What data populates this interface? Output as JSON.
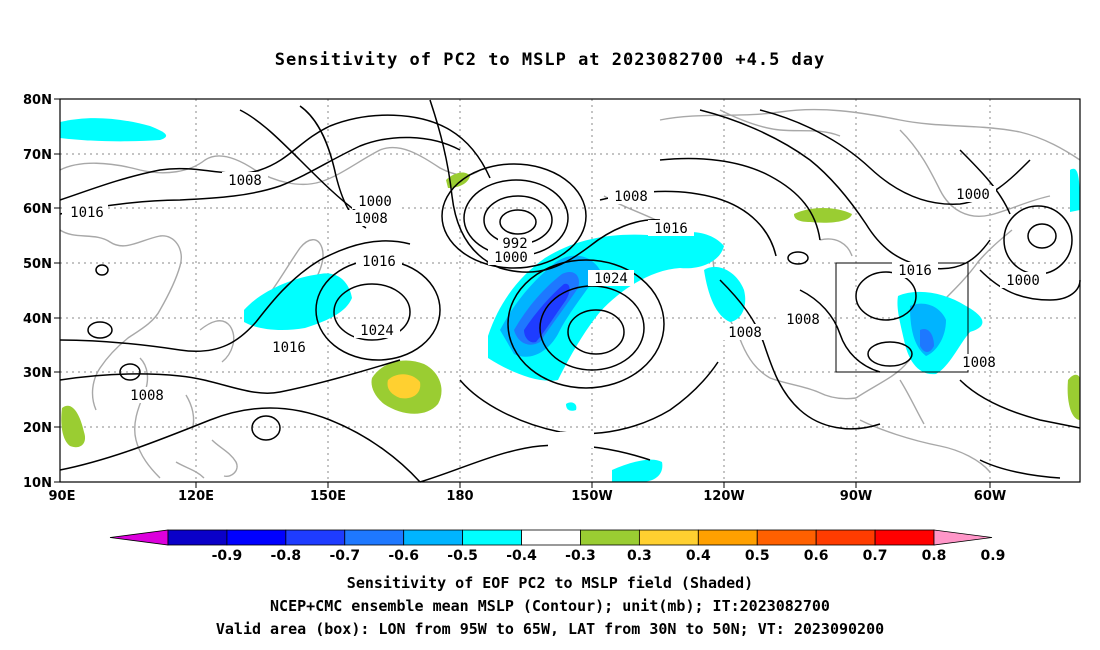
{
  "title": "Sensitivity of PC2 to MSLP at 2023082700 +4.5 day",
  "axes": {
    "lat_labels": [
      "80N",
      "70N",
      "60N",
      "50N",
      "40N",
      "30N",
      "20N",
      "10N"
    ],
    "lon_labels": [
      "90E",
      "120E",
      "150E",
      "180",
      "150W",
      "120W",
      "90W",
      "60W"
    ]
  },
  "contour_labels": [
    {
      "text": "1008"
    },
    {
      "text": "1016"
    },
    {
      "text": "1000"
    },
    {
      "text": "1008"
    },
    {
      "text": "992"
    },
    {
      "text": "1000"
    },
    {
      "text": "1016"
    },
    {
      "text": "1024"
    },
    {
      "text": "1016"
    },
    {
      "text": "1008"
    },
    {
      "text": "1024"
    },
    {
      "text": "1008"
    },
    {
      "text": "1016"
    },
    {
      "text": "1008"
    },
    {
      "text": "1008"
    },
    {
      "text": "1016"
    },
    {
      "text": "1000"
    },
    {
      "text": "1000"
    },
    {
      "text": "1008"
    }
  ],
  "colorbar": {
    "colors": [
      "#dc00dc",
      "#0a00c8",
      "#0000ff",
      "#1e3cff",
      "#1e78ff",
      "#00b4ff",
      "#00ffff",
      "#ffffff",
      "#9acd32",
      "#ffd030",
      "#ffa000",
      "#ff6000",
      "#ff3c00",
      "#ff0000",
      "#ff96c8"
    ],
    "ticks": [
      "-0.9",
      "-0.8",
      "-0.7",
      "-0.6",
      "-0.5",
      "-0.4",
      "-0.3",
      "0.3",
      "0.4",
      "0.5",
      "0.6",
      "0.7",
      "0.8",
      "0.9"
    ]
  },
  "caption": {
    "line1": "Sensitivity of EOF PC2 to MSLP field (Shaded)",
    "line2": "NCEP+CMC ensemble mean MSLP (Contour); unit(mb); IT:2023082700",
    "line3": "Valid area (box): LON from 95W to 65W, LAT from 30N to 50N; VT: 2023090200"
  },
  "valid_box": {
    "lon_min": -95,
    "lon_max": -65,
    "lat_min": 30,
    "lat_max": 50
  }
}
